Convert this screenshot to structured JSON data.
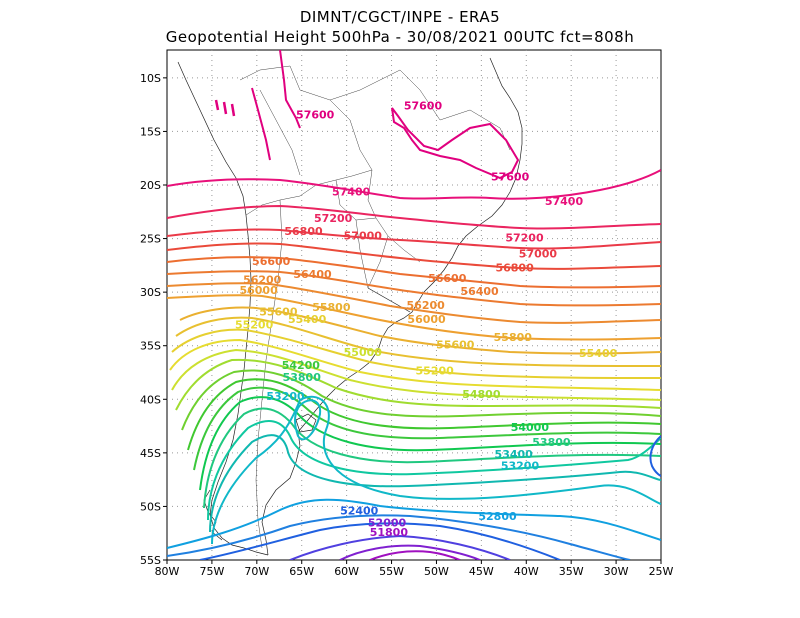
{
  "header": {
    "line1": "DIMNT/CGCT/INPE  -  ERA5",
    "line2": "Geopotential Height 500hPa  -   30/08/2021 00UTC fct=808h"
  },
  "axes": {
    "lat_labels": [
      "10S",
      "15S",
      "20S",
      "25S",
      "30S",
      "35S",
      "40S",
      "45S",
      "50S",
      "55S"
    ],
    "lon_labels": [
      "80W",
      "75W",
      "70W",
      "65W",
      "60W",
      "55W",
      "50W",
      "45W",
      "40W",
      "35W",
      "30W",
      "25W"
    ]
  },
  "contour_labels": [
    {
      "text": "57600",
      "color": "#e0007f",
      "lon": -63.5,
      "lat": -13.4
    },
    {
      "text": "57600",
      "color": "#e0007f",
      "lon": -51.5,
      "lat": -12.6
    },
    {
      "text": "57600",
      "color": "#e0007f",
      "lon": -41.8,
      "lat": -19.2
    },
    {
      "text": "57400",
      "color": "#e8107a",
      "lon": -59.5,
      "lat": -20.6
    },
    {
      "text": "57400",
      "color": "#e8107a",
      "lon": -35.8,
      "lat": -21.5
    },
    {
      "text": "57200",
      "color": "#ea2560",
      "lon": -61.5,
      "lat": -23.1
    },
    {
      "text": "56800",
      "color": "#ea3a48",
      "lon": -64.8,
      "lat": -24.3
    },
    {
      "text": "57000",
      "color": "#ea3a48",
      "lon": -58.2,
      "lat": -24.7
    },
    {
      "text": "57200",
      "color": "#ea2560",
      "lon": -40.2,
      "lat": -24.9
    },
    {
      "text": "57000",
      "color": "#ea3a48",
      "lon": -38.7,
      "lat": -26.4
    },
    {
      "text": "56800",
      "color": "#ea4a3a",
      "lon": -41.3,
      "lat": -27.7
    },
    {
      "text": "56600",
      "color": "#ec6e30",
      "lon": -68.4,
      "lat": -27.1
    },
    {
      "text": "56400",
      "color": "#ec7a30",
      "lon": -63.8,
      "lat": -28.3
    },
    {
      "text": "56600",
      "color": "#ec6e30",
      "lon": -48.8,
      "lat": -28.7
    },
    {
      "text": "56200",
      "color": "#ec8a30",
      "lon": -69.4,
      "lat": -28.8
    },
    {
      "text": "56000",
      "color": "#eea030",
      "lon": -69.8,
      "lat": -29.8
    },
    {
      "text": "56400",
      "color": "#ec7a30",
      "lon": -45.2,
      "lat": -29.9
    },
    {
      "text": "56200",
      "color": "#ec8a30",
      "lon": -51.2,
      "lat": -31.2
    },
    {
      "text": "55800",
      "color": "#eab030",
      "lon": -61.7,
      "lat": -31.4
    },
    {
      "text": "55600",
      "color": "#e8c030",
      "lon": -67.6,
      "lat": -31.8
    },
    {
      "text": "56000",
      "color": "#eea030",
      "lon": -51.1,
      "lat": -32.5
    },
    {
      "text": "55400",
      "color": "#e6d030",
      "lon": -64.4,
      "lat": -32.5
    },
    {
      "text": "55200",
      "color": "#e6dc30",
      "lon": -70.3,
      "lat": -33.0
    },
    {
      "text": "55800",
      "color": "#eab030",
      "lon": -41.5,
      "lat": -34.2
    },
    {
      "text": "55600",
      "color": "#e8c030",
      "lon": -47.9,
      "lat": -34.9
    },
    {
      "text": "55000",
      "color": "#cce030",
      "lon": -58.2,
      "lat": -35.6
    },
    {
      "text": "55400",
      "color": "#e6d030",
      "lon": -32.0,
      "lat": -35.7
    },
    {
      "text": "54200",
      "color": "#3cc83c",
      "lon": -65.1,
      "lat": -36.8
    },
    {
      "text": "53800",
      "color": "#20c880",
      "lon": -65.0,
      "lat": -37.9
    },
    {
      "text": "55200",
      "color": "#e6dc30",
      "lon": -50.2,
      "lat": -37.3
    },
    {
      "text": "54800",
      "color": "#a0dc30",
      "lon": -45.0,
      "lat": -39.5
    },
    {
      "text": "53200",
      "color": "#10b8c8",
      "lon": -66.8,
      "lat": -39.7
    },
    {
      "text": "54000",
      "color": "#10c850",
      "lon": -39.6,
      "lat": -42.6
    },
    {
      "text": "53800",
      "color": "#20c880",
      "lon": -37.2,
      "lat": -44.0
    },
    {
      "text": "53400",
      "color": "#10b8b0",
      "lon": -41.4,
      "lat": -45.1
    },
    {
      "text": "53200",
      "color": "#10b8c8",
      "lon": -40.7,
      "lat": -46.2
    },
    {
      "text": "52400",
      "color": "#2060e0",
      "lon": -58.6,
      "lat": -50.4
    },
    {
      "text": "52800",
      "color": "#10a0e0",
      "lon": -43.2,
      "lat": -50.9
    },
    {
      "text": "52000",
      "color": "#8020d0",
      "lon": -55.5,
      "lat": -51.5
    },
    {
      "text": "51800",
      "color": "#a010c0",
      "lon": -55.3,
      "lat": -52.4
    }
  ]
}
